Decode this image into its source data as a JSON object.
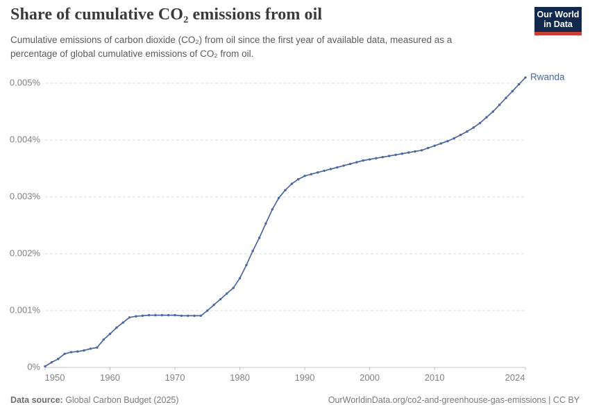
{
  "header": {
    "title": "Share of cumulative CO₂ emissions from oil",
    "subtitle": "Cumulative emissions of carbon dioxide (CO₂) from oil since the first year of available data, measured as a percentage of global cumulative emissions of CO₂ from oil.",
    "logo": {
      "line1": "Our World",
      "line2": "in Data",
      "bg_color": "#12294e",
      "accent_color": "#cc3e36"
    }
  },
  "footer": {
    "datasource_label": "Data source:",
    "datasource_value": " Global Carbon Budget (2025)",
    "rights": "OurWorldinData.org/co2-and-greenhouse-gas-emissions | CC BY"
  },
  "chart_data": {
    "type": "line",
    "title": "Share of cumulative CO₂ emissions from oil",
    "xlabel": "",
    "ylabel": "",
    "entity_label": "Rwanda",
    "line_color": "#4b67a0",
    "label_color": "#4b67a0",
    "grid": "horizontal-dashed",
    "legend_position": "end-of-line",
    "xlim": [
      1950,
      2024
    ],
    "ylim": [
      0,
      0.0052
    ],
    "xticks": [
      1950,
      1960,
      1970,
      1980,
      1990,
      2000,
      2010,
      2024
    ],
    "yticks": [
      0,
      0.001,
      0.002,
      0.003,
      0.004,
      0.005
    ],
    "ytick_labels": [
      "0%",
      "0.001%",
      "0.002%",
      "0.003%",
      "0.004%",
      "0.005%"
    ],
    "x": [
      1950,
      1951,
      1952,
      1953,
      1954,
      1955,
      1956,
      1957,
      1958,
      1959,
      1960,
      1961,
      1962,
      1963,
      1964,
      1965,
      1966,
      1967,
      1968,
      1969,
      1970,
      1971,
      1972,
      1973,
      1974,
      1975,
      1976,
      1977,
      1978,
      1979,
      1980,
      1981,
      1982,
      1983,
      1984,
      1985,
      1986,
      1987,
      1988,
      1989,
      1990,
      1991,
      1992,
      1993,
      1994,
      1995,
      1996,
      1997,
      1998,
      1999,
      2000,
      2001,
      2002,
      2003,
      2004,
      2005,
      2006,
      2007,
      2008,
      2009,
      2010,
      2011,
      2012,
      2013,
      2014,
      2015,
      2016,
      2017,
      2018,
      2019,
      2020,
      2021,
      2022,
      2023,
      2024
    ],
    "series": [
      {
        "name": "Rwanda",
        "unit": "%",
        "values": [
          2e-05,
          9e-05,
          0.00015,
          0.00024,
          0.00027,
          0.00028,
          0.0003,
          0.00033,
          0.00035,
          0.00049,
          0.00059,
          0.0007,
          0.00079,
          0.00088,
          0.0009,
          0.00091,
          0.00092,
          0.00092,
          0.00092,
          0.00092,
          0.00092,
          0.00091,
          0.00091,
          0.00091,
          0.00091,
          0.001,
          0.0011,
          0.0012,
          0.0013,
          0.0014,
          0.00157,
          0.0018,
          0.00205,
          0.00228,
          0.00253,
          0.00278,
          0.00298,
          0.00312,
          0.00323,
          0.00331,
          0.00337,
          0.0034,
          0.00343,
          0.00346,
          0.00349,
          0.00352,
          0.00355,
          0.00358,
          0.00361,
          0.00364,
          0.00366,
          0.00368,
          0.0037,
          0.00372,
          0.00374,
          0.00376,
          0.00378,
          0.0038,
          0.00382,
          0.00386,
          0.0039,
          0.00394,
          0.00398,
          0.00403,
          0.00409,
          0.00415,
          0.00422,
          0.0043,
          0.0044,
          0.0045,
          0.00462,
          0.00474,
          0.00486,
          0.00498,
          0.0051
        ]
      }
    ]
  }
}
